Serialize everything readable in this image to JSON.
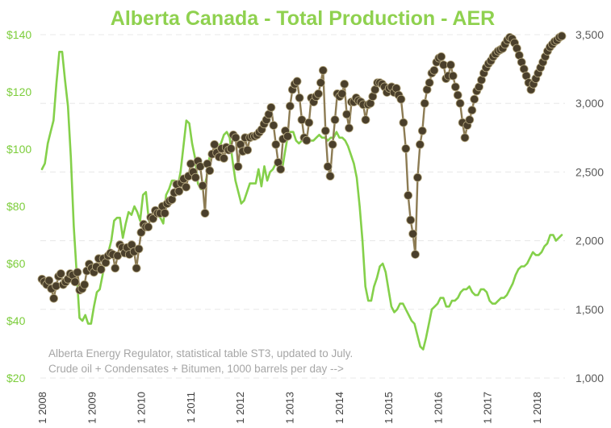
{
  "chart_data": {
    "type": "line",
    "title": "Alberta Canada - Total Production - AER",
    "annotations": [
      "Alberta Energy Regulator, statistical table ST3, updated to July.",
      "Crude oil + Condensates + Bitumen, 1000 barrels per day -->"
    ],
    "x_ticks": [
      "1 2008",
      "1 2009",
      "1 2010",
      "1 2011",
      "1 2012",
      "1 2013",
      "1 2014",
      "1 2015",
      "1 2016",
      "1 2017",
      "1 2018"
    ],
    "y_left_ticks": [
      "$140",
      "$120",
      "$100",
      "$80",
      "$60",
      "$40",
      "$20"
    ],
    "y_right_ticks": [
      "3,500",
      "3,000",
      "2,500",
      "2,000",
      "1,500",
      "1,000"
    ],
    "ylim_left": [
      20,
      140
    ],
    "ylim_right": [
      1000,
      3500
    ],
    "x_start_year": 2008,
    "grid": "horizontal dashed",
    "colors": {
      "title": "#8fd14f",
      "left_axis": "#7ccd3b",
      "price_line": "#84d04a",
      "production_line": "#8c7b53",
      "production_marker": "#4a3f2b",
      "right_axis": "#5a5a5a",
      "gridline": "#e8e8e8"
    },
    "series": [
      {
        "axis": "left",
        "values": [
          93,
          95,
          102,
          106,
          110,
          123,
          134,
          134,
          124,
          115,
          97,
          73,
          57,
          41,
          40,
          42,
          39,
          39,
          45,
          50,
          51,
          56,
          62,
          64,
          68,
          75,
          76,
          76,
          69,
          74,
          78,
          77,
          80,
          78,
          75,
          84,
          85,
          75,
          75,
          76,
          77,
          76,
          74,
          84,
          86,
          89,
          89,
          87,
          92,
          101,
          110,
          109,
          102,
          97,
          88,
          86,
          86,
          90,
          97,
          99,
          100,
          101,
          102,
          105,
          106,
          104,
          96,
          89,
          85,
          81,
          82,
          85,
          88,
          88,
          88,
          93,
          87,
          94,
          89,
          92,
          93,
          95,
          94,
          92,
          98,
          104,
          106,
          106,
          103,
          102,
          103,
          105,
          104,
          103,
          103,
          104,
          105,
          104,
          104,
          103,
          104,
          104,
          106,
          104,
          104,
          103,
          101,
          98,
          95,
          90,
          80,
          68,
          52,
          47,
          47,
          52,
          55,
          59,
          60,
          57,
          51,
          45,
          43,
          44,
          46,
          46,
          44,
          42,
          40,
          39,
          35,
          31,
          30,
          34,
          39,
          44,
          45,
          46,
          48,
          48,
          45,
          45,
          47,
          47,
          48,
          50,
          51,
          51,
          52,
          50,
          49,
          49,
          51,
          51,
          50,
          47,
          46,
          46,
          47,
          48,
          48,
          49,
          51,
          53,
          56,
          58,
          59,
          59,
          60,
          62,
          64,
          63,
          63,
          64,
          66,
          67,
          70,
          70,
          68,
          69,
          70
        ]
      },
      {
        "axis": "right",
        "values": [
          1720,
          1700,
          1680,
          1710,
          1650,
          1580,
          1670,
          1740,
          1760,
          1680,
          1700,
          1720,
          1760,
          1750,
          1700,
          1770,
          1640,
          1650,
          1680,
          1780,
          1830,
          1800,
          1770,
          1810,
          1870,
          1790,
          1870,
          1840,
          1890,
          1910,
          1900,
          1800,
          1890,
          1970,
          1950,
          1910,
          1950,
          1900,
          1970,
          1920,
          1800,
          1940,
          2060,
          2120,
          2100,
          2100,
          2170,
          2160,
          2220,
          2200,
          2200,
          2250,
          2200,
          2270,
          2290,
          2300,
          2350,
          2410,
          2360,
          2420,
          2450,
          2390,
          2470,
          2560,
          2500,
          2460,
          2580,
          2540,
          2400,
          2200,
          2560,
          2510,
          2630,
          2700,
          2640,
          2610,
          2670,
          2600,
          2680,
          2660,
          2670,
          2770,
          2750,
          2540,
          2700,
          2650,
          2750,
          2660,
          2750,
          2760,
          2760,
          2770,
          2790,
          2810,
          2850,
          2880,
          2920,
          2970,
          2840,
          2700,
          2570,
          2520,
          2740,
          2800,
          2760,
          2980,
          3100,
          3140,
          3160,
          3040,
          2880,
          2750,
          2730,
          2860,
          3040,
          3010,
          3050,
          3070,
          3150,
          3240,
          2800,
          2540,
          2470,
          2700,
          2880,
          3070,
          3050,
          3070,
          3140,
          2920,
          2820,
          3010,
          3010,
          3040,
          3020,
          3010,
          2990,
          2880,
          2990,
          3000,
          3050,
          3100,
          3150,
          3150,
          3140,
          3120,
          3080,
          3110,
          3120,
          3080,
          3110,
          3060,
          3030,
          2860,
          2670,
          2330,
          2150,
          2050,
          1900,
          2460,
          2700,
          2800,
          3000,
          3100,
          3150,
          3220,
          3240,
          3300,
          3330,
          3340,
          3280,
          3180,
          3200,
          3280,
          3200,
          3120,
          3060,
          3000,
          2860,
          2750,
          2840,
          2880,
          2950,
          3030,
          3090,
          3120,
          3170,
          3220,
          3260,
          3290,
          3310,
          3340,
          3360,
          3380,
          3390,
          3400,
          3430,
          3460,
          3480,
          3470,
          3440,
          3400,
          3350,
          3300,
          3250,
          3200,
          3150,
          3100,
          3140,
          3180,
          3220,
          3260,
          3300,
          3340,
          3380,
          3410,
          3430,
          3450,
          3460,
          3480,
          3490
        ]
      }
    ]
  }
}
